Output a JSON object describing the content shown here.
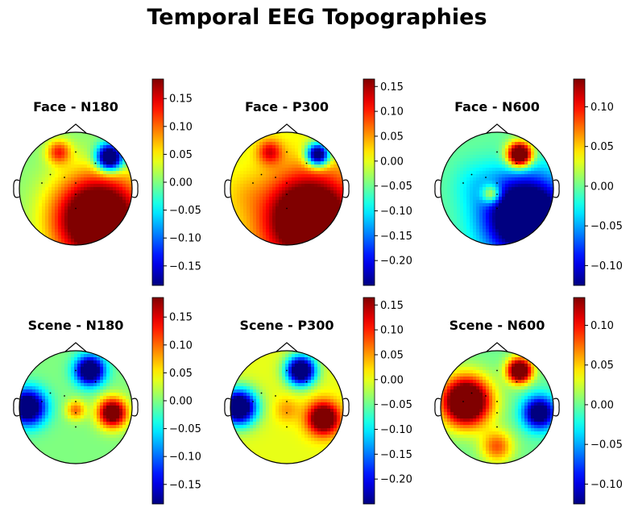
{
  "figure_title": "Temporal EEG Topographies",
  "chart_data": [
    {
      "type": "heatmap",
      "title": "Face - N180",
      "colormap": "jet",
      "vmin": -0.185,
      "vmax": 0.185,
      "colorbar_ticks": [
        0.15,
        0.1,
        0.05,
        0.0,
        -0.05,
        -0.1,
        -0.15
      ],
      "colorbar_tick_labels": [
        "0.15",
        "0.10",
        "0.05",
        "0.00",
        "−0.05",
        "−0.10",
        "−0.15"
      ],
      "sources": [
        {
          "x": 0.4,
          "y": -0.55,
          "value": 0.3,
          "spread": 0.55
        },
        {
          "x": 0.6,
          "y": 0.55,
          "value": -0.3,
          "spread": 0.16
        },
        {
          "x": -0.3,
          "y": 0.65,
          "value": 0.12,
          "spread": 0.15
        },
        {
          "x": -0.45,
          "y": -0.05,
          "value": 0.0,
          "spread": 0.3
        }
      ]
    },
    {
      "type": "heatmap",
      "title": "Face - P300",
      "colormap": "jet",
      "vmin": -0.25,
      "vmax": 0.165,
      "colorbar_ticks": [
        0.15,
        0.1,
        0.05,
        0.0,
        -0.05,
        -0.1,
        -0.15,
        -0.2
      ],
      "colorbar_tick_labels": [
        "0.15",
        "0.10",
        "0.05",
        "0.00",
        "−0.05",
        "−0.10",
        "−0.15",
        "−0.20"
      ],
      "sources": [
        {
          "x": 0.4,
          "y": -0.55,
          "value": 0.3,
          "spread": 0.55
        },
        {
          "x": 0.55,
          "y": 0.6,
          "value": -0.32,
          "spread": 0.14
        },
        {
          "x": -0.3,
          "y": 0.65,
          "value": 0.12,
          "spread": 0.15
        },
        {
          "x": -0.75,
          "y": -0.1,
          "value": 0.02,
          "spread": 0.25
        }
      ]
    },
    {
      "type": "heatmap",
      "title": "Face - N600",
      "colormap": "jet",
      "vmin": -0.125,
      "vmax": 0.135,
      "colorbar_ticks": [
        0.1,
        0.05,
        0.0,
        -0.05,
        -0.1
      ],
      "colorbar_tick_labels": [
        "0.10",
        "0.05",
        "0.00",
        "−0.05",
        "−0.10"
      ],
      "sources": [
        {
          "x": 0.5,
          "y": -0.5,
          "value": -0.22,
          "spread": 0.5
        },
        {
          "x": 0.4,
          "y": 0.6,
          "value": 0.22,
          "spread": 0.15
        },
        {
          "x": -0.1,
          "y": -0.1,
          "value": 0.1,
          "spread": 0.12
        },
        {
          "x": -0.4,
          "y": 0.1,
          "value": -0.02,
          "spread": 0.3
        }
      ]
    },
    {
      "type": "heatmap",
      "title": "Scene - N180",
      "colormap": "jet",
      "vmin": -0.185,
      "vmax": 0.185,
      "colorbar_ticks": [
        0.15,
        0.1,
        0.05,
        0.0,
        -0.05,
        -0.1,
        -0.15
      ],
      "colorbar_tick_labels": [
        "0.15",
        "0.10",
        "0.05",
        "0.00",
        "−0.05",
        "−0.10",
        "−0.15"
      ],
      "sources": [
        {
          "x": -0.85,
          "y": 0.0,
          "value": -0.26,
          "spread": 0.22
        },
        {
          "x": 0.25,
          "y": 0.65,
          "value": -0.26,
          "spread": 0.18
        },
        {
          "x": 0.65,
          "y": -0.1,
          "value": 0.24,
          "spread": 0.18
        },
        {
          "x": 0.0,
          "y": -0.05,
          "value": 0.1,
          "spread": 0.12
        }
      ]
    },
    {
      "type": "heatmap",
      "title": "Scene - P300",
      "colormap": "jet",
      "vmin": -0.25,
      "vmax": 0.165,
      "colorbar_ticks": [
        0.15,
        0.1,
        0.05,
        0.0,
        -0.05,
        -0.1,
        -0.15,
        -0.2
      ],
      "colorbar_tick_labels": [
        "0.15",
        "0.10",
        "0.05",
        "0.00",
        "−0.05",
        "−0.10",
        "−0.15",
        "−0.20"
      ],
      "sources": [
        {
          "x": -0.85,
          "y": 0.0,
          "value": -0.34,
          "spread": 0.22
        },
        {
          "x": 0.25,
          "y": 0.65,
          "value": -0.34,
          "spread": 0.18
        },
        {
          "x": 0.65,
          "y": -0.2,
          "value": 0.25,
          "spread": 0.2
        },
        {
          "x": 0.0,
          "y": -0.05,
          "value": 0.05,
          "spread": 0.15
        }
      ]
    },
    {
      "type": "heatmap",
      "title": "Scene - N600",
      "colormap": "jet",
      "vmin": -0.125,
      "vmax": 0.135,
      "colorbar_ticks": [
        0.1,
        0.05,
        0.0,
        -0.05,
        -0.1
      ],
      "colorbar_tick_labels": [
        "0.10",
        "0.05",
        "0.00",
        "−0.05",
        "−0.10"
      ],
      "sources": [
        {
          "x": -0.55,
          "y": 0.1,
          "value": 0.22,
          "spread": 0.3
        },
        {
          "x": 0.4,
          "y": 0.65,
          "value": 0.2,
          "spread": 0.15
        },
        {
          "x": 0.75,
          "y": -0.1,
          "value": -0.16,
          "spread": 0.2
        },
        {
          "x": 0.0,
          "y": -0.7,
          "value": 0.08,
          "spread": 0.2
        }
      ]
    }
  ]
}
